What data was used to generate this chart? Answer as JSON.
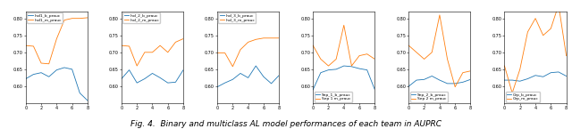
{
  "subplots": [
    {
      "label_b": "Ind1_b_prauc",
      "label_m": "Ind1_m_prauc",
      "x": [
        0,
        1,
        2,
        3,
        4,
        5,
        6,
        7,
        8
      ],
      "y_b": [
        0.622,
        0.635,
        0.64,
        0.628,
        0.648,
        0.655,
        0.65,
        0.58,
        0.558
      ],
      "y_m": [
        0.72,
        0.718,
        0.668,
        0.666,
        0.74,
        0.795,
        0.8,
        0.8,
        0.802
      ],
      "ylim": [
        0.55,
        0.82
      ],
      "legend_loc": "upper left"
    },
    {
      "label_b": "Ind_2_b_prauc",
      "label_m": "Ind_2_m_prauc",
      "x": [
        0,
        1,
        2,
        3,
        4,
        5,
        6,
        7,
        8
      ],
      "y_b": [
        0.622,
        0.648,
        0.61,
        0.622,
        0.638,
        0.625,
        0.61,
        0.612,
        0.648
      ],
      "y_m": [
        0.72,
        0.718,
        0.66,
        0.7,
        0.7,
        0.72,
        0.7,
        0.73,
        0.74
      ],
      "ylim": [
        0.55,
        0.82
      ],
      "legend_loc": "upper left"
    },
    {
      "label_b": "Ind_3_b_prauc",
      "label_m": "Ind_3_m_prauc",
      "x": [
        0,
        1,
        2,
        3,
        4,
        5,
        6,
        7,
        8
      ],
      "y_b": [
        0.598,
        0.61,
        0.62,
        0.638,
        0.625,
        0.66,
        0.628,
        0.608,
        0.632
      ],
      "y_m": [
        0.698,
        0.698,
        0.658,
        0.708,
        0.73,
        0.738,
        0.742,
        0.742,
        0.742
      ],
      "ylim": [
        0.55,
        0.82
      ],
      "legend_loc": "upper left"
    },
    {
      "label_b": "Sep_1_b_prauc",
      "label_m": "Sep 1 m_prauc",
      "x": [
        0,
        1,
        2,
        3,
        4,
        5,
        6,
        7,
        8
      ],
      "y_b": [
        0.59,
        0.64,
        0.648,
        0.65,
        0.66,
        0.658,
        0.652,
        0.648,
        0.59
      ],
      "y_m": [
        0.72,
        0.68,
        0.66,
        0.68,
        0.78,
        0.66,
        0.69,
        0.695,
        0.68
      ],
      "ylim": [
        0.55,
        0.82
      ],
      "legend_loc": "lower left"
    },
    {
      "label_b": "Sep_2_b_prauc",
      "label_m": "Sep 2 m_prauc",
      "x": [
        0,
        1,
        2,
        3,
        4,
        5,
        6,
        7,
        8
      ],
      "y_b": [
        0.6,
        0.618,
        0.62,
        0.63,
        0.618,
        0.608,
        0.608,
        0.612,
        0.62
      ],
      "y_m": [
        0.72,
        0.7,
        0.68,
        0.7,
        0.81,
        0.68,
        0.598,
        0.64,
        0.645
      ],
      "ylim": [
        0.55,
        0.82
      ],
      "legend_loc": "lower left"
    },
    {
      "label_b": "Grp_b_prauc",
      "label_m": "Grp_m_prauc",
      "x": [
        0,
        1,
        2,
        3,
        4,
        5,
        6,
        7,
        8
      ],
      "y_b": [
        0.618,
        0.618,
        0.615,
        0.622,
        0.632,
        0.628,
        0.64,
        0.642,
        0.63
      ],
      "y_m": [
        0.66,
        0.58,
        0.65,
        0.76,
        0.8,
        0.75,
        0.77,
        0.84,
        0.69
      ],
      "ylim": [
        0.55,
        0.82
      ],
      "legend_loc": "lower left"
    }
  ],
  "color_b": "#1f77b4",
  "color_m": "#ff7f0e",
  "figure_caption": "Fig. 4.  Binary and multiclass AL model performances of each team in AUPRC",
  "caption_fontsize": 6.5,
  "yticks_all": [
    0.6,
    0.65,
    0.7,
    0.75,
    0.8
  ],
  "xticks_all": [
    0,
    2,
    4,
    6,
    8
  ]
}
